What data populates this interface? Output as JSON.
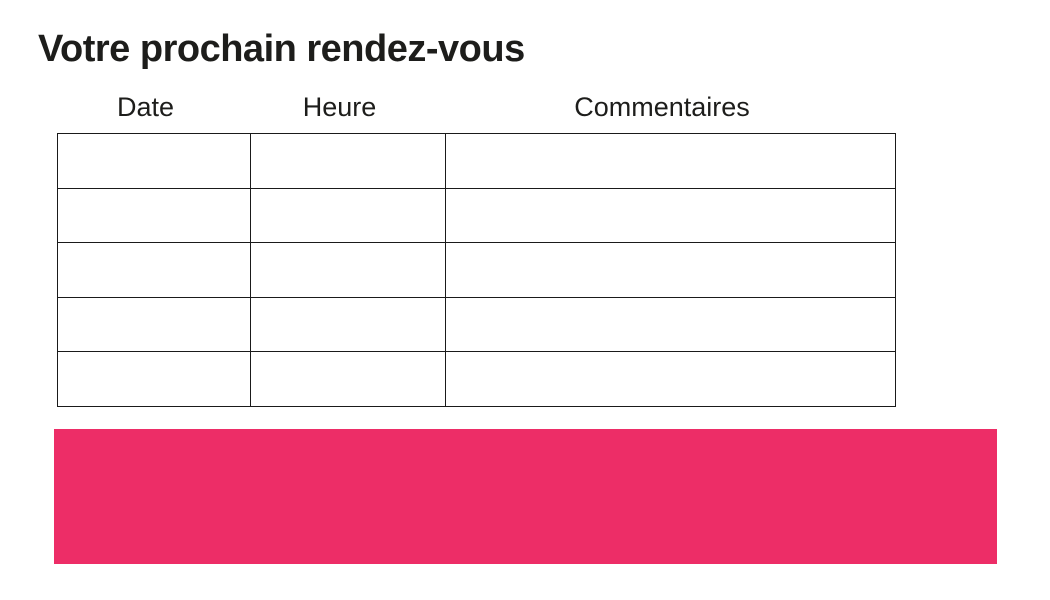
{
  "page": {
    "title": "Votre prochain rendez-vous",
    "background": "#FFFFFF"
  },
  "appointments_table": {
    "headers": [
      "Date",
      "Heure",
      "Commentaires"
    ],
    "row_count": 5,
    "rows": [
      [
        "",
        "",
        ""
      ],
      [
        "",
        "",
        ""
      ],
      [
        "",
        "",
        ""
      ],
      [
        "",
        "",
        ""
      ],
      [
        "",
        "",
        ""
      ]
    ]
  },
  "banner": {
    "text": "",
    "color": "#ED2D67"
  },
  "colors": {
    "text": "#1D1D1B",
    "table_border": "#1A1A1A"
  }
}
